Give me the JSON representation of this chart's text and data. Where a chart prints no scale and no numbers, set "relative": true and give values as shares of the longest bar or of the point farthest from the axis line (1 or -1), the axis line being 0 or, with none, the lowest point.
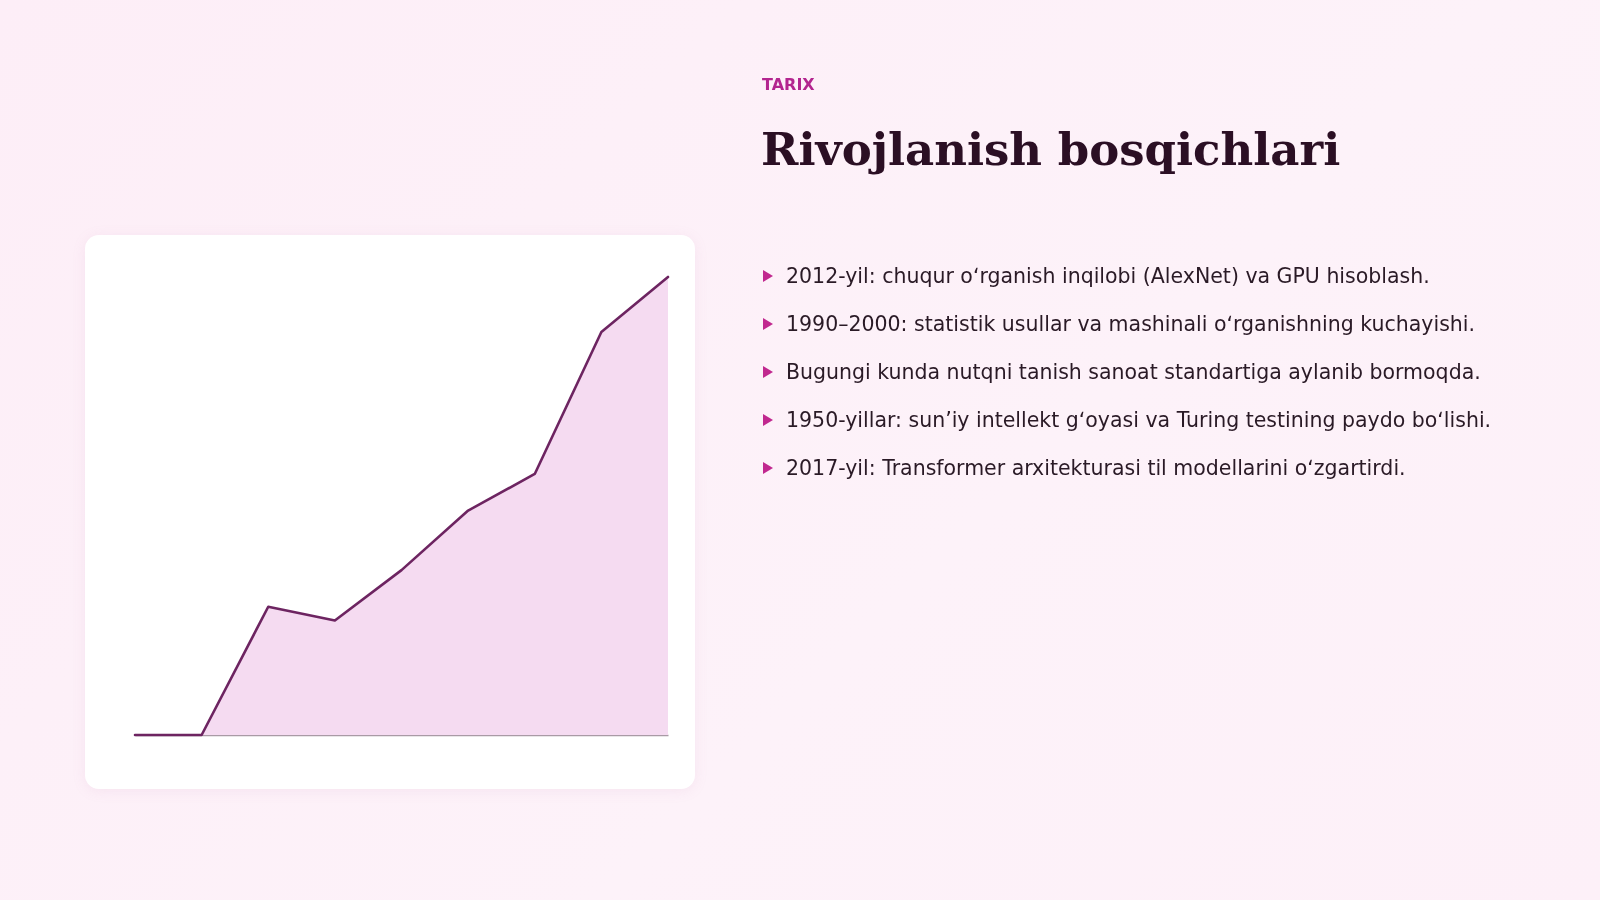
{
  "chart_data": {
    "type": "area",
    "subtitle": "TARIX",
    "title": "Rivojlanish bosqichlari",
    "annotations": [
      "2012-yil: chuqur oʻrganish inqilobi (AlexNet) va GPU hisoblash.",
      "1990–2000: statistik usullar va mashinali oʻrganishning kuchayishi.",
      "Bugungi kunda nutqni tanish sanoat standartiga aylanib bormoqda.",
      "1950-yillar: sunʼiy intellekt gʻoyasi va Turing testining paydo boʻlishi.",
      "2017-yil: Transformer arxitekturasi til modellarini oʻzgartirdi."
    ],
    "categories": [
      null,
      null,
      null,
      null,
      null,
      null,
      null,
      null,
      null
    ],
    "relative": true,
    "values": [
      0,
      0,
      0.28,
      0.25,
      0.36,
      0.49,
      0.57,
      0.88,
      1
    ],
    "color": "#6d2461"
  }
}
